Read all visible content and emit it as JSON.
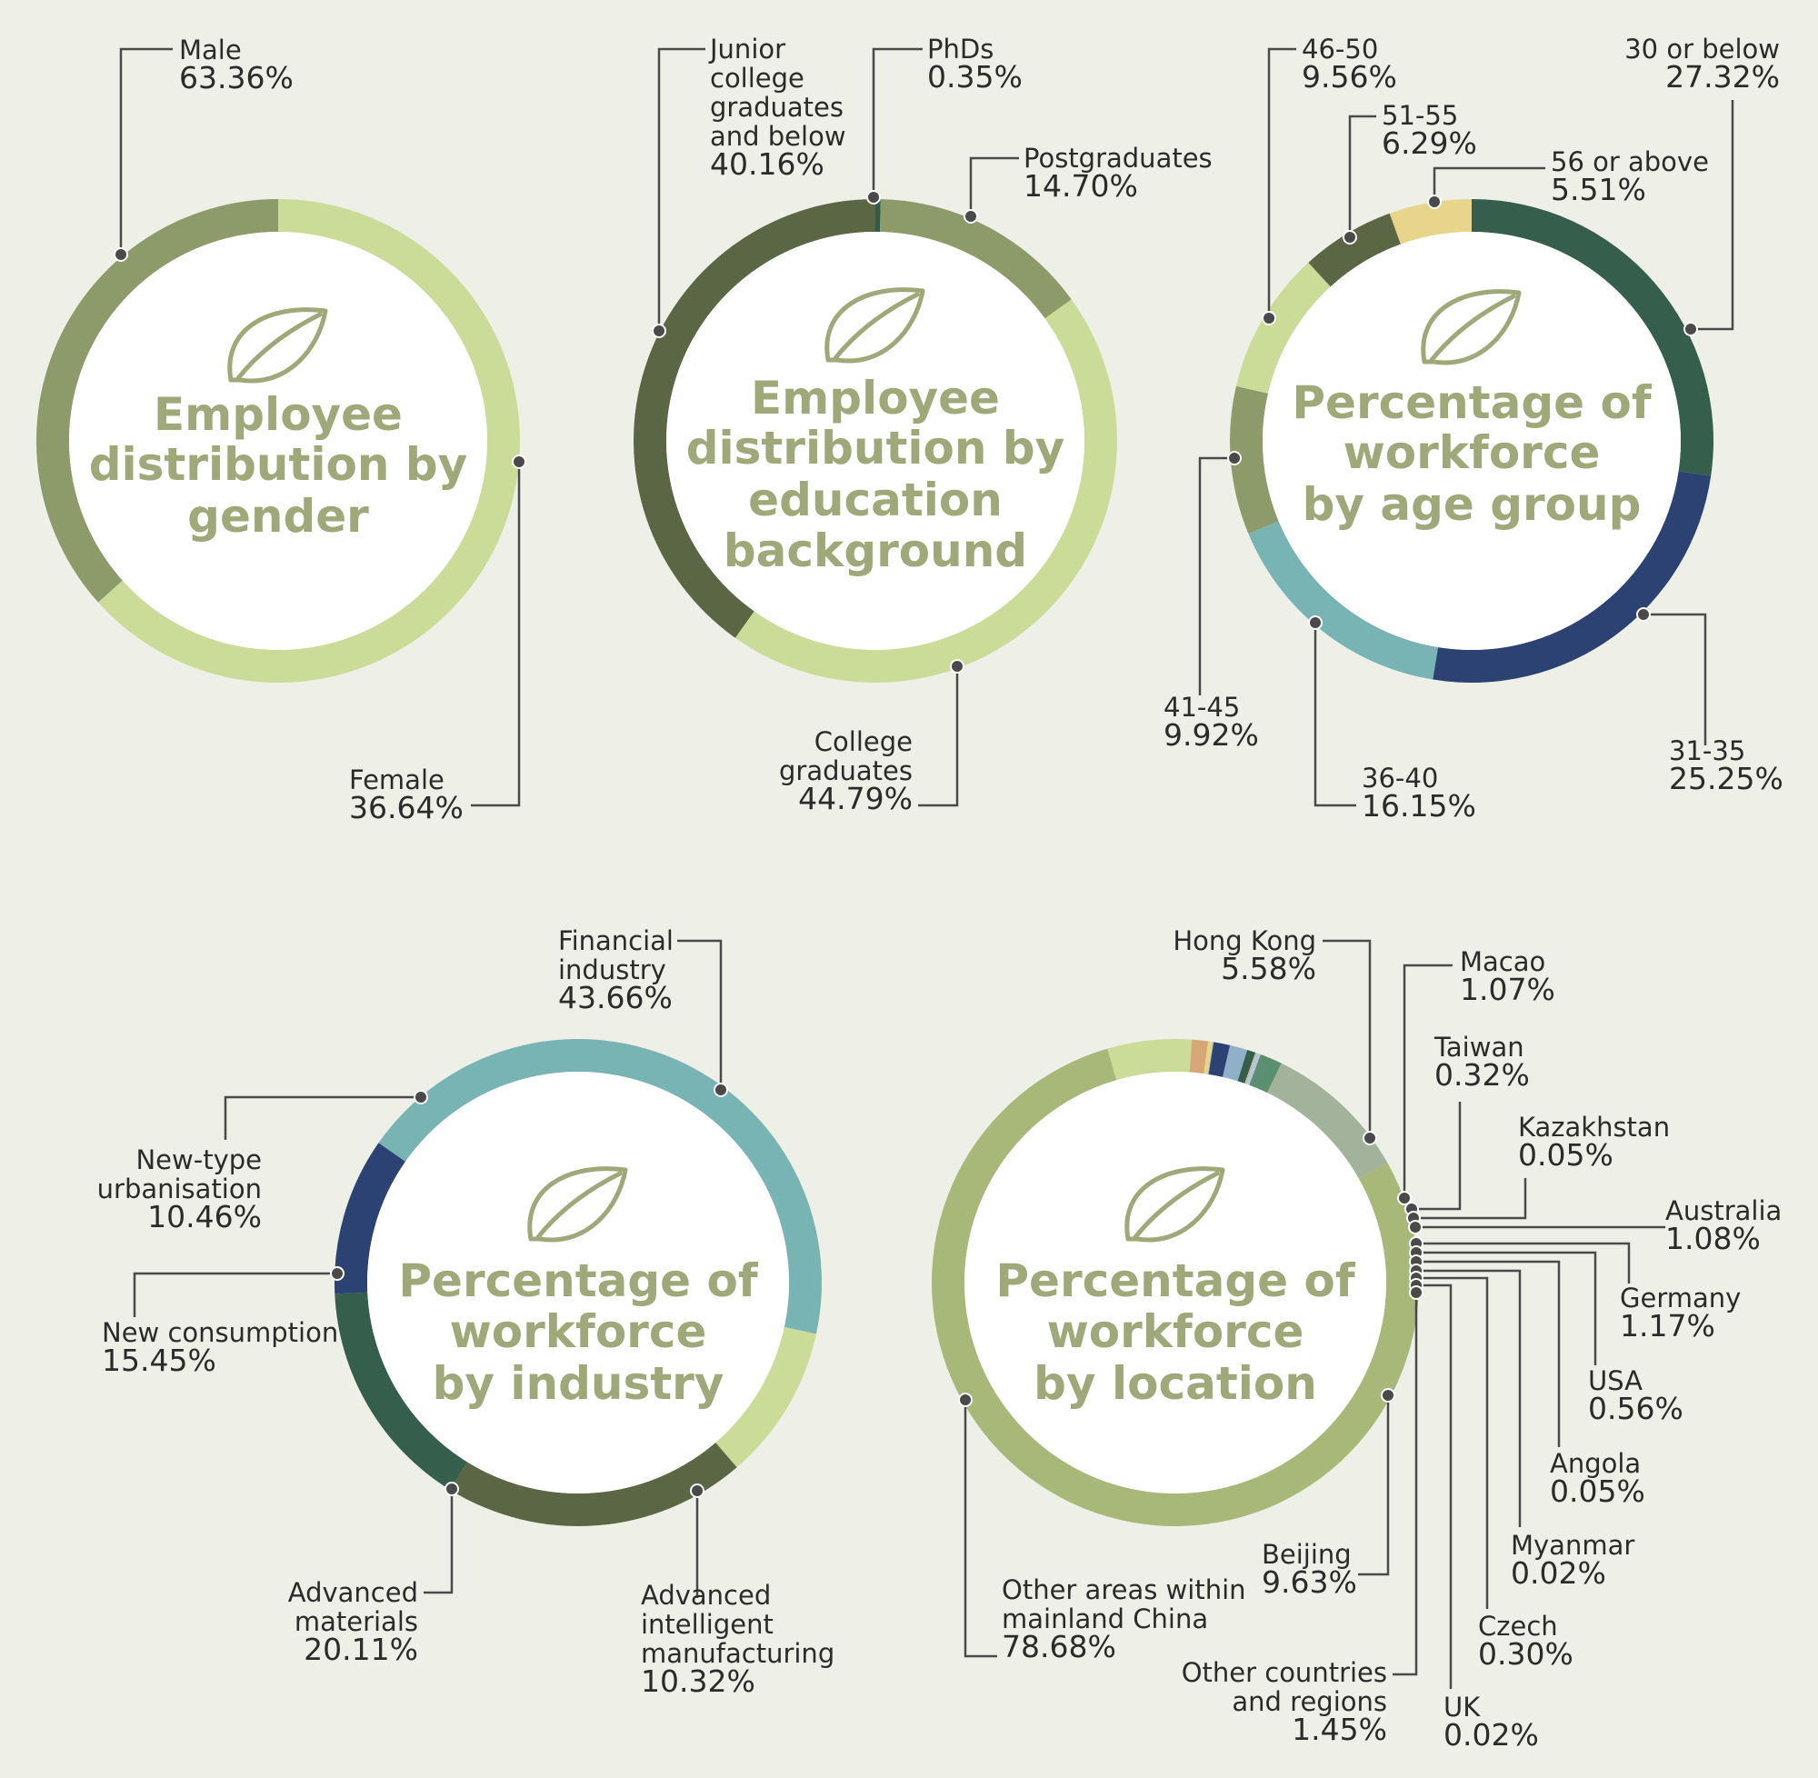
{
  "chart_data": [
    {
      "id": "gender",
      "type": "pie",
      "title": "Employee distribution by gender",
      "categories": [
        "Male",
        "Female"
      ],
      "values": [
        63.36,
        36.64
      ],
      "value_labels": [
        "63.36%",
        "36.64%"
      ],
      "colors": [
        "#cbdb98",
        "#8d9b6b"
      ]
    },
    {
      "id": "education",
      "type": "pie",
      "title": "Employee distribution by education background",
      "categories": [
        "PhDs",
        "Postgraduates",
        "College graduates",
        "Junior college graduates and below"
      ],
      "values": [
        0.35,
        14.7,
        44.79,
        40.16
      ],
      "value_labels": [
        "0.35%",
        "14.70%",
        "44.79%",
        "40.16%"
      ],
      "colors": [
        "#2f5b48",
        "#8d9b6b",
        "#cbdb98",
        "#5a6644"
      ]
    },
    {
      "id": "age",
      "type": "pie",
      "title": "Percentage of workforce by age group",
      "categories": [
        "30 or below",
        "31-35",
        "36-40",
        "41-45",
        "46-50",
        "51-55",
        "56 or above"
      ],
      "values": [
        27.32,
        25.25,
        16.15,
        9.92,
        9.56,
        6.29,
        5.51
      ],
      "value_labels": [
        "27.32%",
        "25.25%",
        "16.15%",
        "9.92%",
        "9.56%",
        "6.29%",
        "5.51%"
      ],
      "colors": [
        "#355f4c",
        "#2c4272",
        "#79b4b4",
        "#8d9b6b",
        "#cbdb98",
        "#5a6644",
        "#e8d48a"
      ]
    },
    {
      "id": "industry",
      "type": "pie",
      "title": "Percentage of workforce by industry",
      "categories": [
        "Financial industry",
        "Advanced intelligent manufacturing",
        "Advanced materials",
        "New consumption",
        "New-type urbanisation"
      ],
      "values": [
        43.66,
        10.32,
        20.11,
        15.45,
        10.46
      ],
      "value_labels": [
        "43.66%",
        "10.32%",
        "20.11%",
        "15.45%",
        "10.46%"
      ],
      "colors": [
        "#79b4b4",
        "#cbdb98",
        "#5a6644",
        "#355f4c",
        "#2c4272"
      ]
    },
    {
      "id": "location",
      "type": "pie",
      "title": "Percentage of workforce by location",
      "categories": [
        "Other areas within mainland China",
        "Hong Kong",
        "Macao",
        "Taiwan",
        "Kazakhstan",
        "Australia",
        "Germany",
        "USA",
        "Angola",
        "Myanmar",
        "Czech",
        "UK",
        "Other countries and regions",
        "Beijing"
      ],
      "values": [
        78.68,
        5.58,
        1.07,
        0.32,
        0.05,
        1.08,
        1.17,
        0.56,
        0.05,
        0.02,
        0.3,
        0.02,
        1.45,
        9.63
      ],
      "value_labels": [
        "78.68%",
        "5.58%",
        "1.07%",
        "0.32%",
        "0.05%",
        "1.08%",
        "1.17%",
        "0.56%",
        "0.05%",
        "0.02%",
        "0.30%",
        "0.02%",
        "1.45%",
        "9.63%"
      ],
      "colors": [
        "#a8b878",
        "#cbdb98",
        "#d6a878",
        "#e8d48a",
        "#79b4b4",
        "#2c4272",
        "#8fb0c8",
        "#355f4c",
        "#e8d48a",
        "#5a6644",
        "#b8c8d8",
        "#2c4272",
        "#5a8f70",
        "#a3b29a"
      ]
    }
  ]
}
